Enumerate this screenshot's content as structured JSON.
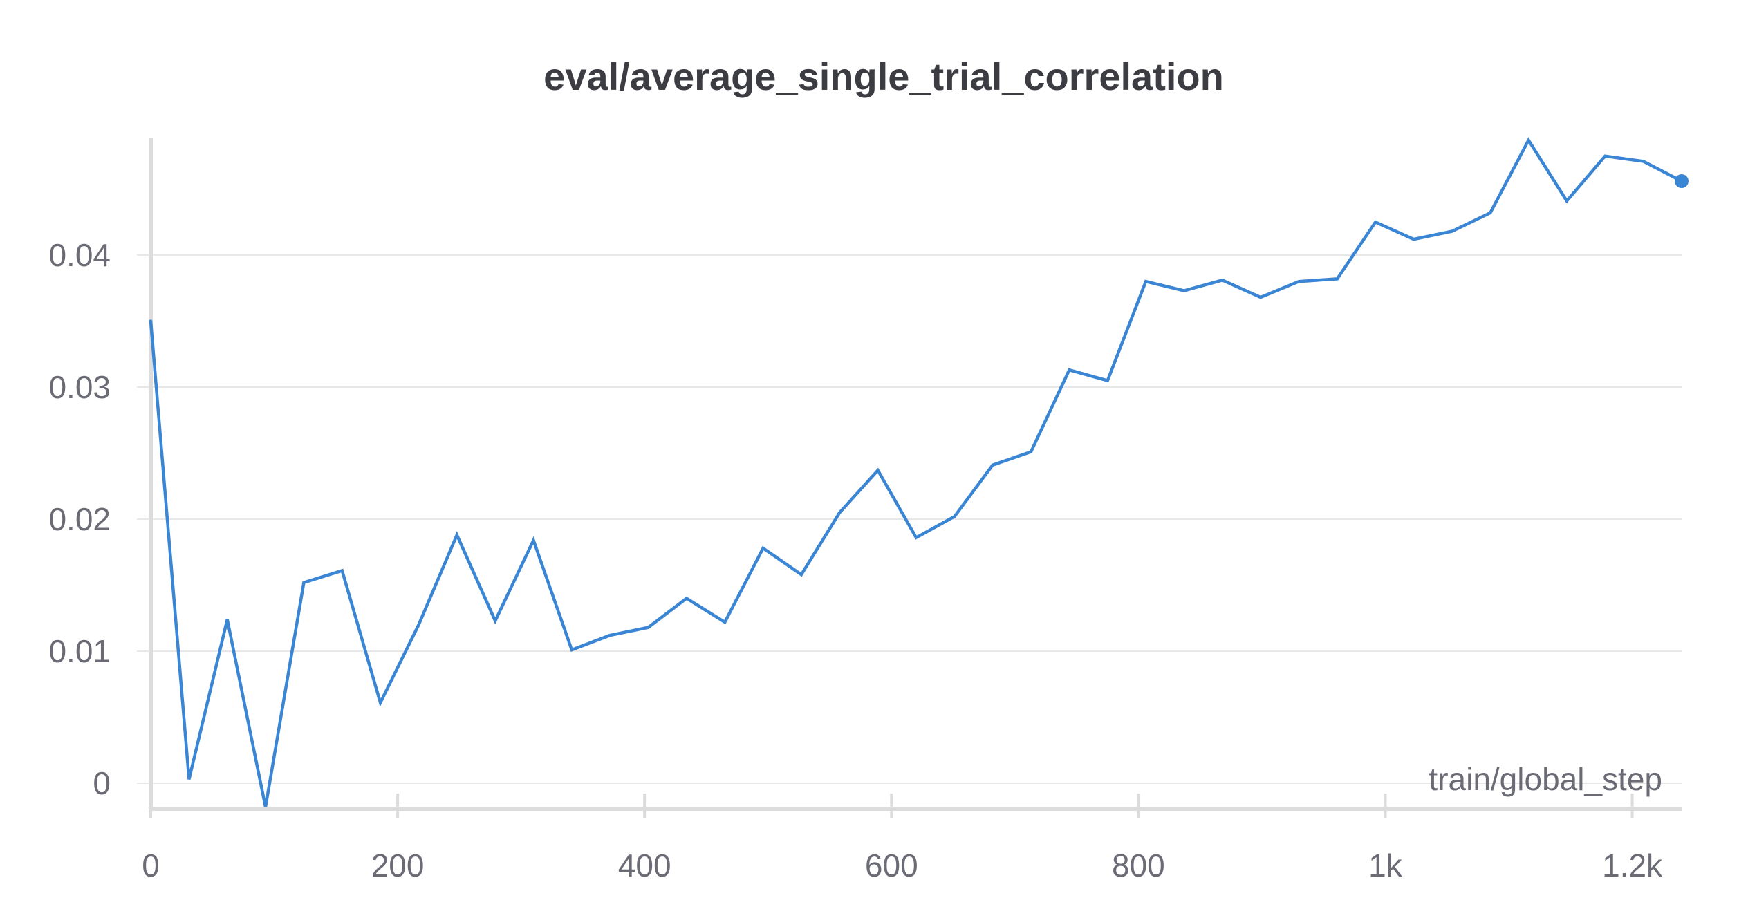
{
  "chart_data": {
    "type": "line",
    "title": "eval/average_single_trial_correlation",
    "xlabel": "train/global_step",
    "ylabel": "",
    "xlim": [
      0,
      1240
    ],
    "ylim": [
      -0.002,
      0.049
    ],
    "x_ticks": [
      {
        "value": 0,
        "label": "0"
      },
      {
        "value": 200,
        "label": "200"
      },
      {
        "value": 400,
        "label": "400"
      },
      {
        "value": 600,
        "label": "600"
      },
      {
        "value": 800,
        "label": "800"
      },
      {
        "value": 1000,
        "label": "1k"
      },
      {
        "value": 1200,
        "label": "1.2k"
      }
    ],
    "y_ticks": [
      {
        "value": 0,
        "label": "0"
      },
      {
        "value": 0.01,
        "label": "0.01"
      },
      {
        "value": 0.02,
        "label": "0.02"
      },
      {
        "value": 0.03,
        "label": "0.03"
      },
      {
        "value": 0.04,
        "label": "0.04"
      }
    ],
    "grid": "horizontal",
    "legend": "none",
    "colors": {
      "line": "#3a86d4",
      "grid": "#e8e8e8",
      "axis": "#dcdcdc",
      "tick_text": "#6b6b76",
      "title_text": "#3c3c43"
    },
    "series": [
      {
        "x": [
          0,
          31,
          62,
          93,
          124,
          155,
          186,
          217,
          248,
          279,
          310,
          341,
          372,
          403,
          434,
          465,
          496,
          527,
          558,
          589,
          620,
          651,
          682,
          713,
          744,
          775,
          806,
          837,
          868,
          899,
          930,
          961,
          992,
          1023,
          1054,
          1085,
          1116,
          1147,
          1178,
          1209,
          1240
        ],
        "values": [
          0.035,
          0.0003,
          0.0124,
          -0.0018,
          0.0152,
          0.0161,
          0.0061,
          0.012,
          0.0188,
          0.0123,
          0.0184,
          0.0101,
          0.0112,
          0.0118,
          0.014,
          0.0122,
          0.0178,
          0.0158,
          0.0205,
          0.0237,
          0.0186,
          0.0202,
          0.0241,
          0.0251,
          0.0313,
          0.0305,
          0.038,
          0.0373,
          0.0381,
          0.0368,
          0.038,
          0.0382,
          0.0425,
          0.0412,
          0.0418,
          0.0432,
          0.0487,
          0.0441,
          0.0475,
          0.0471,
          0.0456
        ]
      }
    ]
  }
}
